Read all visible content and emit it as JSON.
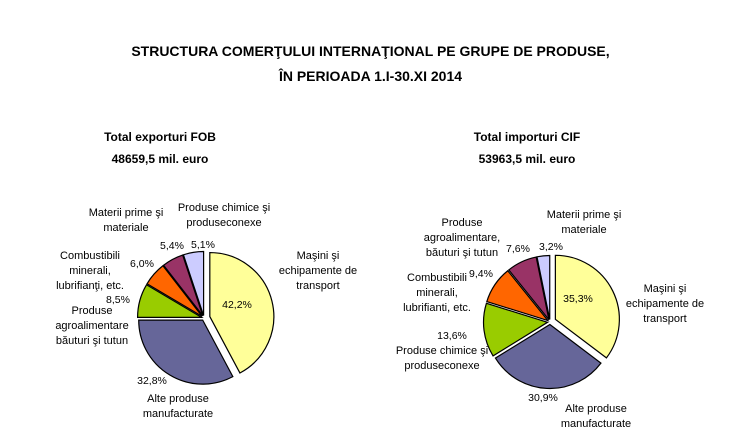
{
  "title_line1": "STRUCTURA COMERŢULUI INTERNAŢIONAL PE GRUPE DE PRODUSE,",
  "title_line2": "ÎN PERIOADA 1.I-30.XI 2014",
  "chart_data": [
    {
      "type": "pie",
      "title": "Total exporturi FOB",
      "subtitle": "48659,5 mil. euro",
      "categories": [
        "Maşini şi echipamente de transport",
        "Alte produse manufacturate",
        "Produse agroalimentare băuturi şi tutun",
        "Combustibili minerali, lubrifianţi, etc.",
        "Materii prime şi materiale",
        "Produse chimice şi produseconexe"
      ],
      "values": [
        42.2,
        32.8,
        8.5,
        6.0,
        5.4,
        5.1
      ],
      "value_labels": [
        "42,2%",
        "32,8%",
        "8,5%",
        "6,0%",
        "5,4%",
        "5,1%"
      ],
      "colors": [
        "#ffff99",
        "#666699",
        "#99cc00",
        "#ff6600",
        "#993366",
        "#ccccff"
      ]
    },
    {
      "type": "pie",
      "title": "Total importuri  CIF",
      "subtitle": "53963,5 mil. euro",
      "categories": [
        "Maşini şi echipamente de transport",
        "Alte produse manufacturate",
        "Produse chimice şi produseconexe",
        "Combustibili minerali, lubrifianti, etc.",
        "Produse agroalimentare, băuturi şi tutun",
        "Materii prime şi materiale"
      ],
      "values": [
        35.3,
        30.9,
        13.6,
        9.4,
        7.6,
        3.2
      ],
      "value_labels": [
        "35,3%",
        "30,9%",
        "13,6%",
        "9,4%",
        "7,6%",
        "3,2%"
      ],
      "colors": [
        "#ffff99",
        "#666699",
        "#99cc00",
        "#ff6600",
        "#993366",
        "#ccccff"
      ]
    }
  ]
}
